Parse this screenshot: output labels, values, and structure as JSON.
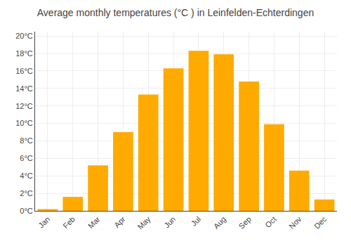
{
  "chart_data": {
    "type": "bar",
    "title": "Average monthly temperatures (°C ) in Leinfelden-Echterdingen",
    "categories": [
      "Jan",
      "Feb",
      "Mar",
      "Apr",
      "May",
      "Jun",
      "Jul",
      "Aug",
      "Sep",
      "Oct",
      "Nov",
      "Dec"
    ],
    "values": [
      0.2,
      1.6,
      5.2,
      9.0,
      13.3,
      16.3,
      18.3,
      17.9,
      14.8,
      9.9,
      4.6,
      1.3
    ],
    "color": "#FFAA00",
    "ylim": [
      0,
      20.5
    ],
    "yticks": [
      {
        "value": 0,
        "label": "0°C"
      },
      {
        "value": 2,
        "label": "2°C"
      },
      {
        "value": 4,
        "label": "4°C"
      },
      {
        "value": 6,
        "label": "6°C"
      },
      {
        "value": 8,
        "label": "8°C"
      },
      {
        "value": 10,
        "label": "10°C"
      },
      {
        "value": 12,
        "label": "12°C"
      },
      {
        "value": 14,
        "label": "14°C"
      },
      {
        "value": 16,
        "label": "16°C"
      },
      {
        "value": 18,
        "label": "18°C"
      },
      {
        "value": 20,
        "label": "20°C"
      }
    ],
    "grid": true
  }
}
